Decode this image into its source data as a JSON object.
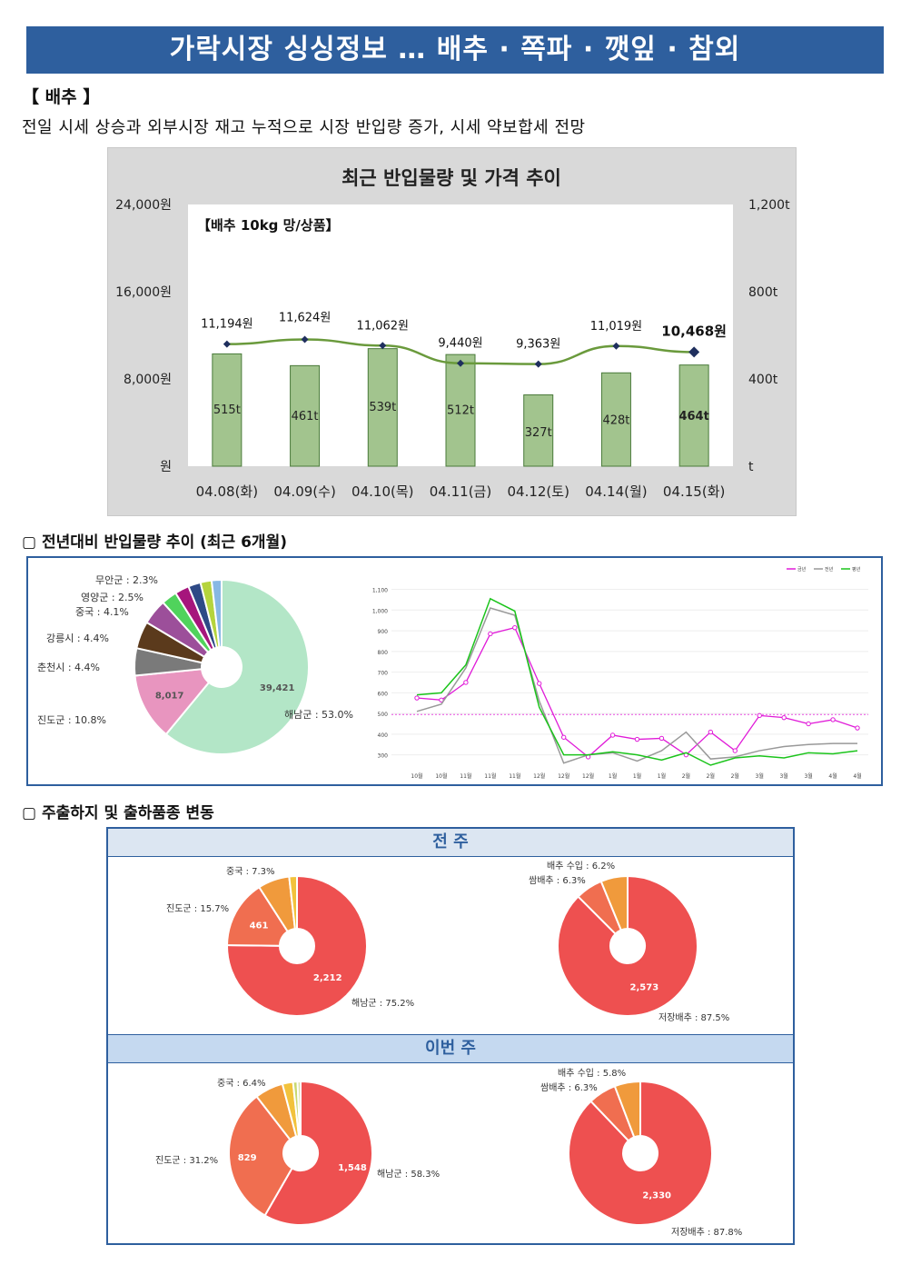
{
  "header": {
    "title": "가락시장 싱싱정보 … 배추 · 쪽파 · 깻잎 · 참외"
  },
  "section": {
    "heading": "【 배추 】",
    "summary": "전일 시세 상승과 외부시장 재고 누적으로 시장 반입량 증가, 시세 약보합세 전망"
  },
  "main_chart": {
    "chart_data": {
      "type": "bar",
      "title": "최근 반입물량 및 가격 추이",
      "subtitle": "【배추 10kg 망/상품】",
      "categories": [
        "04.08(화)",
        "04.09(수)",
        "04.10(목)",
        "04.11(금)",
        "04.12(토)",
        "04.14(월)",
        "04.15(화)"
      ],
      "series": [
        {
          "values": [
            515,
            461,
            539,
            512,
            327,
            428,
            464
          ],
          "labels": [
            "515t",
            "461t",
            "539t",
            "512t",
            "327t",
            "428t",
            "464t"
          ],
          "color": "#a2c48e",
          "axis": "right"
        },
        {
          "type": "line",
          "values": [
            11194,
            11624,
            11062,
            9440,
            9363,
            11019,
            10468
          ],
          "labels": [
            "11,194원",
            "11,624원",
            "11,062원",
            "9,440원",
            "9,363원",
            "11,019원",
            "10,468원"
          ],
          "color": "#6a9a3c",
          "axis": "left"
        }
      ],
      "y_left": {
        "ylim": [
          0,
          24000
        ],
        "ticks": [
          "원",
          "8,000원",
          "16,000원",
          "24,000원"
        ]
      },
      "y_right": {
        "ylim": [
          0,
          1200
        ],
        "ticks": [
          "t",
          "400t",
          "800t",
          "1,200t"
        ]
      }
    }
  },
  "yoy": {
    "heading": "▢ 전년대비 반입물량 추이 (최근 6개월)",
    "pie": {
      "chart_data": {
        "type": "pie",
        "slices": [
          {
            "label": "해남군 : 53.0%",
            "value": 53.0,
            "inner_label": "39,421",
            "color": "#b3e6c7"
          },
          {
            "label": "진도군 : 10.8%",
            "value": 10.8,
            "inner_label": "8,017",
            "color": "#e895bf"
          },
          {
            "label": "춘천시 : 4.4%",
            "value": 4.4,
            "color": "#7a7a7a"
          },
          {
            "label": "강릉시 : 4.4%",
            "value": 4.4,
            "color": "#5b3a1c"
          },
          {
            "label": "중국 : 4.1%",
            "value": 4.1,
            "color": "#9c4f9a"
          },
          {
            "label": "영양군 : 2.5%",
            "value": 2.5,
            "color": "#50d35c"
          },
          {
            "label": "무안군 : 2.3%",
            "value": 2.3,
            "color": "#a6167c"
          },
          {
            "label": "",
            "value": 2.0,
            "color": "#2e4a86"
          },
          {
            "label": "",
            "value": 1.8,
            "color": "#b5d43d"
          },
          {
            "label": "",
            "value": 1.6,
            "color": "#87b8e4"
          }
        ]
      }
    },
    "line": {
      "chart_data": {
        "type": "line",
        "legend": [
          "금년",
          "전년",
          "평년"
        ],
        "x": [
          "10월",
          "10월",
          "11월",
          "11월",
          "11월",
          "12월",
          "12월",
          "12월",
          "1월",
          "1월",
          "1월",
          "2월",
          "2월",
          "2월",
          "3월",
          "3월",
          "3월",
          "4월",
          "4월"
        ],
        "y_ticks": [
          "300",
          "400",
          "500",
          "600",
          "700",
          "800",
          "900",
          "1,000",
          "1,100"
        ],
        "ylim": [
          250,
          1120
        ],
        "series": [
          {
            "name": "금년",
            "color": "#e01ad8",
            "values": [
              575,
              565,
              650,
              885,
              915,
              645,
              385,
              290,
              395,
              375,
              380,
              300,
              410,
              320,
              490,
              480,
              450,
              470,
              430
            ]
          },
          {
            "name": "전년",
            "color": "#999999",
            "values": [
              510,
              545,
              720,
              1010,
              975,
              560,
              260,
              300,
              310,
              270,
              320,
              410,
              280,
              290,
              320,
              340,
              350,
              355,
              355
            ]
          },
          {
            "name": "평년",
            "color": "#1bc41b",
            "values": [
              590,
              600,
              735,
              1055,
              995,
              530,
              300,
              300,
              315,
              300,
              275,
              310,
              250,
              285,
              295,
              285,
              310,
              305,
              320
            ]
          }
        ],
        "reference_line": 495
      }
    }
  },
  "shipping": {
    "heading": "▢ 주출하지 및 출하품종 변동",
    "prev_week_label": "전 주",
    "this_week_label": "이번 주",
    "prev_region": {
      "chart_data": {
        "type": "pie",
        "slices": [
          {
            "label": "해남군 : 75.2%",
            "value": 75.2,
            "inner_label": "2,212",
            "color": "#ee5050"
          },
          {
            "label": "진도군 : 15.7%",
            "value": 15.7,
            "inner_label": "461",
            "color": "#f06e50"
          },
          {
            "label": "중국 : 7.3%",
            "value": 7.3,
            "color": "#f09a3c"
          },
          {
            "label": "",
            "value": 1.8,
            "color": "#f2c23c"
          }
        ]
      }
    },
    "prev_variety": {
      "chart_data": {
        "type": "pie",
        "slices": [
          {
            "label": "저장배추 : 87.5%",
            "value": 87.5,
            "inner_label": "2,573",
            "color": "#ee5050"
          },
          {
            "label": "쌈배추 : 6.3%",
            "value": 6.3,
            "color": "#f06e50"
          },
          {
            "label": "배추 수입 : 6.2%",
            "value": 6.2,
            "color": "#f09a3c"
          }
        ]
      }
    },
    "this_region": {
      "chart_data": {
        "type": "pie",
        "slices": [
          {
            "label": "해남군 : 58.3%",
            "value": 58.3,
            "inner_label": "1,548",
            "color": "#ee5050"
          },
          {
            "label": "진도군 : 31.2%",
            "value": 31.2,
            "inner_label": "829",
            "color": "#f06e50"
          },
          {
            "label": "중국 : 6.4%",
            "value": 6.4,
            "color": "#f09a3c"
          },
          {
            "label": "",
            "value": 2.4,
            "color": "#f2c23c"
          },
          {
            "label": "",
            "value": 1.0,
            "color": "#c9d870"
          },
          {
            "label": "",
            "value": 0.7,
            "color": "#d8dfa0"
          }
        ]
      }
    },
    "this_variety": {
      "chart_data": {
        "type": "pie",
        "slices": [
          {
            "label": "저장배추 : 87.8%",
            "value": 87.8,
            "inner_label": "2,330",
            "color": "#ee5050"
          },
          {
            "label": "쌈배추 : 6.3%",
            "value": 6.3,
            "color": "#f06e50"
          },
          {
            "label": "배추 수입 : 5.8%",
            "value": 5.8,
            "color": "#f09a3c"
          }
        ]
      }
    }
  }
}
